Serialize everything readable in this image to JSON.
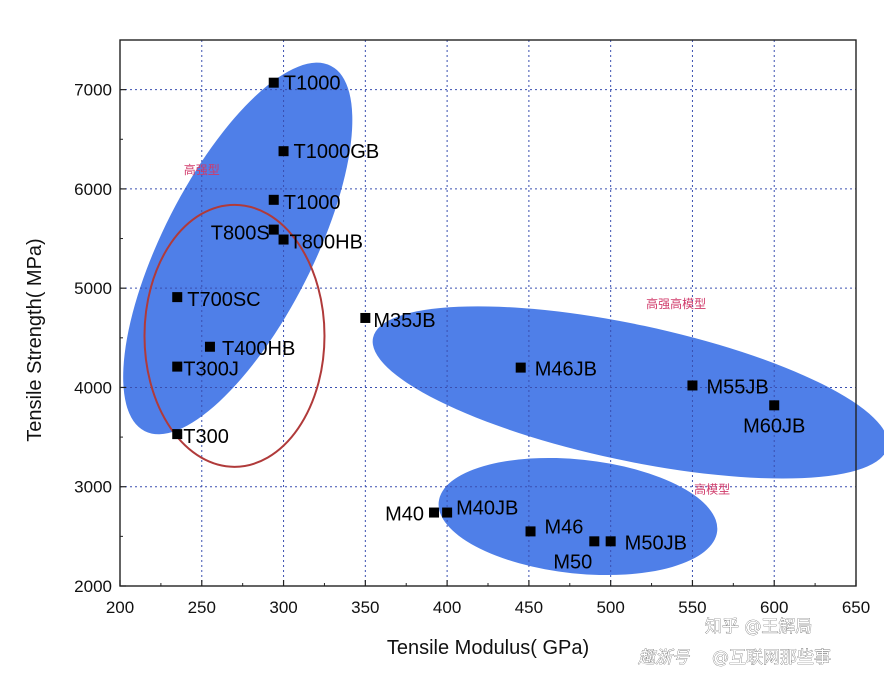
{
  "chart_data": {
    "type": "scatter",
    "xlabel": "Tensile Modulus(  GPa)",
    "ylabel": "Tensile Strength(  MPa)",
    "xlim": [
      200,
      650
    ],
    "ylim": [
      2000,
      7500
    ],
    "xticks": [
      200,
      250,
      300,
      350,
      400,
      450,
      500,
      550,
      600,
      650
    ],
    "yticks": [
      2000,
      3000,
      4000,
      5000,
      6000,
      7000
    ],
    "grid": "dotted",
    "colors": {
      "points": "#000000",
      "region": "#4f7fe8",
      "circle": "#b03a3a",
      "category_text": "#d03a6a",
      "grid": "#3a4fb0"
    },
    "points": [
      {
        "name": "T1000",
        "x": 294,
        "y": 7070
      },
      {
        "name": "T1000GB",
        "x": 300,
        "y": 6380
      },
      {
        "name": "T1000",
        "x": 294,
        "y": 5890
      },
      {
        "name": "T800S",
        "x": 294,
        "y": 5590
      },
      {
        "name": "T800HB",
        "x": 300,
        "y": 5490
      },
      {
        "name": "T700SC",
        "x": 235,
        "y": 4910
      },
      {
        "name": "T400HB",
        "x": 255,
        "y": 4410
      },
      {
        "name": "T300J",
        "x": 235,
        "y": 4210
      },
      {
        "name": "T300",
        "x": 235,
        "y": 3530
      },
      {
        "name": "M35JB",
        "x": 350,
        "y": 4700
      },
      {
        "name": "M46JB",
        "x": 445,
        "y": 4200
      },
      {
        "name": "M55JB",
        "x": 550,
        "y": 4020
      },
      {
        "name": "M60JB",
        "x": 600,
        "y": 3820
      },
      {
        "name": "M40",
        "x": 392,
        "y": 2740
      },
      {
        "name": "M40JB",
        "x": 400,
        "y": 2740
      },
      {
        "name": "M46",
        "x": 451,
        "y": 2550
      },
      {
        "name": "M50",
        "x": 490,
        "y": 2450
      },
      {
        "name": "M50JB",
        "x": 500,
        "y": 2450
      }
    ],
    "regions": [
      {
        "label": "高强型",
        "cx": 272,
        "cy": 5400,
        "rx": 130,
        "ry": 2200,
        "angle": 27
      },
      {
        "label": "高强高模型",
        "cx": 512,
        "cy": 3950,
        "rx": 265,
        "ry": 750,
        "angle": 12
      },
      {
        "label": "高模型",
        "cx": 480,
        "cy": 2700,
        "rx": 142,
        "ry": 920,
        "angle": 6
      }
    ],
    "highlight_circle": {
      "cx": 270,
      "cy": 4500,
      "rx": 80,
      "ry": 1300
    },
    "annotations": [
      "高强型",
      "高强高模型",
      "高模型"
    ]
  },
  "watermark": {
    "line1": "知乎 @王解局",
    "line2_logo": "趣浙号",
    "line2": "@互联网那些事"
  }
}
